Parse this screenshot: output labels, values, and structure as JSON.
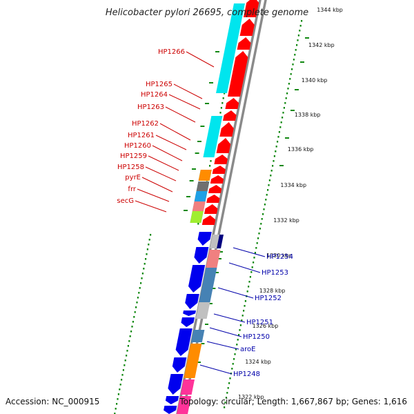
{
  "title": "Helicobacter pylori 26695, complete genome",
  "footer": {
    "accession": "Accession: NC_000915",
    "summary": "Topology: circular; Length: 1,667,867 bp; Genes: 1,616"
  },
  "colors": {
    "forward_label": "#cc0000",
    "reverse_label": "#0000aa",
    "backbone": "#8a8a8a",
    "gc_marks": "#118811",
    "tick": "#118811"
  },
  "kbp_ticks": [
    "1344 kbp",
    "1342 kbp",
    "1340 kbp",
    "1338 kbp",
    "1336 kbp",
    "1334 kbp",
    "1332 kbp",
    "1330 kbp",
    "1328 kbp",
    "1326 kbp",
    "1324 kbp",
    "1322 kbp"
  ],
  "forward_labels": [
    "HP1266",
    "HP1265",
    "HP1264",
    "HP1263",
    "HP1262",
    "HP1261",
    "HP1260",
    "HP1259",
    "HP1258",
    "pyrE",
    "frr",
    "secG"
  ],
  "reverse_labels": [
    "HP1254",
    "HP1253",
    "HP1252",
    "HP1251",
    "HP1250",
    "aroE",
    "HP1248"
  ],
  "forward_gene_colors": [
    "#ff0000",
    "#ff0000",
    "#ff0000",
    "#ff0000",
    "#ff0000",
    "#ff0000",
    "#ff0000",
    "#ff0000",
    "#ff0000",
    "#ff0000",
    "#ff0000",
    "#ff0000",
    "#ff0000",
    "#ff0000",
    "#ff0000",
    "#ff0000",
    "#ff0000",
    "#ff0000"
  ],
  "cog_forward_colors": [
    "#00e5ee",
    "#00e5ee",
    "#00e5ee",
    "#00e5ee",
    "#ff8c00",
    "#707070",
    "#1ea0e6",
    "#f08080",
    "#a0ee30"
  ],
  "reverse_gene_colors": [
    "#0000ee",
    "#0000ee",
    "#0000ee",
    "#0000ee",
    "#0000ee",
    "#0000ee",
    "#0000ee",
    "#0000ee",
    "#0000ee",
    "#0000ee"
  ],
  "cog_reverse_colors": [
    "#000080",
    "#c0c0c0",
    "#f08080",
    "#4682b4",
    "#4682b4",
    "#c0c0c0",
    "#4682b4",
    "#ff8c00",
    "#ff3399",
    "#ff3399"
  ]
}
